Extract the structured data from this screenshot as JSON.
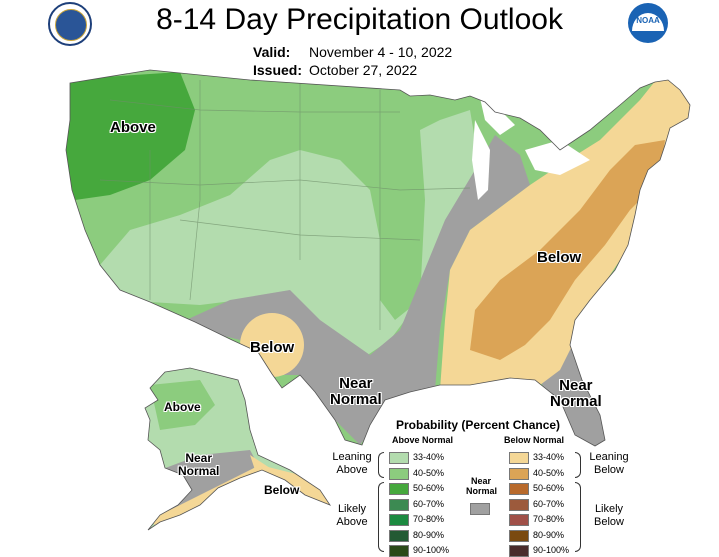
{
  "header": {
    "title": "8-14 Day Precipitation Outlook",
    "valid_label": "Valid:",
    "valid_value": "November 4 - 10, 2022",
    "issued_label": "Issued:",
    "issued_value": "October 27, 2022"
  },
  "logos": {
    "left": "doc-seal-icon",
    "right": "noaa-logo-icon",
    "right_text": "NOAA"
  },
  "colors": {
    "leaning_above": "#b3dcae",
    "above_40_50": "#8ccc7e",
    "above_50_60": "#46a83d",
    "near_normal": "#a0a0a0",
    "leaning_below": "#f4d796",
    "below_40_50": "#dba456",
    "no_data": "#ffffff"
  },
  "map_labels": {
    "above_west": "Above",
    "below_east": "Below",
    "below_texas": "Below",
    "near_normal_south_1": "Near",
    "near_normal_south_2": "Normal",
    "near_normal_florida_1": "Near",
    "near_normal_florida_2": "Normal",
    "alaska_above": "Above",
    "alaska_near_1": "Near",
    "alaska_near_2": "Normal",
    "alaska_below": "Below"
  },
  "legend": {
    "title": "Probability (Percent Chance)",
    "above_header": "Above Normal",
    "below_header": "Below Normal",
    "near_header_1": "Near",
    "near_header_2": "Normal",
    "leaning_above_1": "Leaning",
    "leaning_above_2": "Above",
    "likely_above_1": "Likely",
    "likely_above_2": "Above",
    "leaning_below_1": "Leaning",
    "leaning_below_2": "Below",
    "likely_below_1": "Likely",
    "likely_below_2": "Below",
    "above_bins": [
      {
        "label": "33-40%",
        "color": "#b3dcae"
      },
      {
        "label": "40-50%",
        "color": "#8ccc7e"
      },
      {
        "label": "50-60%",
        "color": "#46a83d"
      },
      {
        "label": "60-70%",
        "color": "#3c8a52"
      },
      {
        "label": "70-80%",
        "color": "#1c8a40"
      },
      {
        "label": "80-90%",
        "color": "#235a34"
      },
      {
        "label": "90-100%",
        "color": "#2b4a18"
      }
    ],
    "below_bins": [
      {
        "label": "33-40%",
        "color": "#f4d796"
      },
      {
        "label": "40-50%",
        "color": "#dba456"
      },
      {
        "label": "50-60%",
        "color": "#b86a2c"
      },
      {
        "label": "60-70%",
        "color": "#9c5a3c"
      },
      {
        "label": "70-80%",
        "color": "#a05048"
      },
      {
        "label": "80-90%",
        "color": "#7a4a10"
      },
      {
        "label": "90-100%",
        "color": "#4a2c2c"
      }
    ],
    "near_color": "#a0a0a0"
  }
}
